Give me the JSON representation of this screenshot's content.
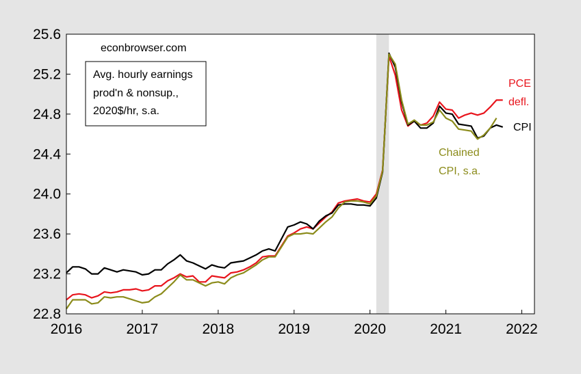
{
  "chart_data": {
    "type": "line",
    "title": "",
    "xlabel": "",
    "ylabel": "",
    "xlim": [
      2016.0,
      2022.167
    ],
    "ylim": [
      22.8,
      25.6
    ],
    "x_ticks": [
      "2016",
      "2017",
      "2018",
      "2019",
      "2020",
      "2021",
      "2022"
    ],
    "y_ticks": [
      "22.8",
      "23.2",
      "23.6",
      "24.0",
      "24.4",
      "24.8",
      "25.2",
      "25.6"
    ],
    "grid": false,
    "recession_shading": [
      2020.083,
      2020.25
    ],
    "source_label": "econbrowser.com",
    "legend_box": [
      "Avg. hourly earnings",
      "prod'n & nonsup.,",
      "2020$/hr, s.a."
    ],
    "series_labels": {
      "pce": [
        "PCE",
        "defl."
      ],
      "cpi": [
        "CPI"
      ],
      "chained": [
        "Chained",
        "CPI, s.a."
      ]
    },
    "series": [
      {
        "id": "pce",
        "color": "#e8141c",
        "start": 2016.0,
        "values": [
          22.94,
          22.99,
          23.0,
          22.99,
          22.96,
          22.98,
          23.02,
          23.01,
          23.02,
          23.04,
          23.04,
          23.05,
          23.03,
          23.04,
          23.08,
          23.08,
          23.13,
          23.16,
          23.2,
          23.17,
          23.18,
          23.12,
          23.12,
          23.18,
          23.17,
          23.16,
          23.21,
          23.22,
          23.24,
          23.27,
          23.31,
          23.37,
          23.38,
          23.38,
          23.48,
          23.58,
          23.61,
          23.65,
          23.67,
          23.65,
          23.71,
          23.77,
          23.82,
          23.91,
          23.93,
          23.94,
          23.95,
          23.93,
          23.92,
          24.0,
          24.24,
          25.38,
          25.19,
          24.84,
          24.68,
          24.73,
          24.69,
          24.71,
          24.78,
          24.92,
          24.85,
          24.84,
          24.76,
          24.79,
          24.81,
          24.79,
          24.81,
          24.87,
          24.94,
          24.94
        ]
      },
      {
        "id": "cpi",
        "color": "#000000",
        "start": 2016.0,
        "values": [
          23.21,
          23.27,
          23.27,
          23.25,
          23.2,
          23.2,
          23.26,
          23.24,
          23.22,
          23.24,
          23.23,
          23.22,
          23.19,
          23.2,
          23.24,
          23.24,
          23.3,
          23.34,
          23.39,
          23.33,
          23.31,
          23.28,
          23.25,
          23.29,
          23.27,
          23.26,
          23.31,
          23.32,
          23.33,
          23.36,
          23.39,
          23.43,
          23.45,
          23.43,
          23.55,
          23.67,
          23.69,
          23.72,
          23.7,
          23.65,
          23.73,
          23.78,
          23.81,
          23.89,
          23.9,
          23.9,
          23.89,
          23.89,
          23.88,
          23.96,
          24.22,
          25.41,
          25.27,
          24.92,
          24.69,
          24.73,
          24.66,
          24.66,
          24.71,
          24.88,
          24.81,
          24.8,
          24.7,
          24.69,
          24.68,
          24.56,
          24.58,
          24.66,
          24.69,
          24.67
        ]
      },
      {
        "id": "chained",
        "color": "#8b8b1a",
        "start": 2016.0,
        "values": [
          22.85,
          22.94,
          22.94,
          22.94,
          22.9,
          22.91,
          22.97,
          22.96,
          22.97,
          22.97,
          22.95,
          22.93,
          22.91,
          22.92,
          22.97,
          23.0,
          23.06,
          23.12,
          23.19,
          23.14,
          23.14,
          23.11,
          23.08,
          23.11,
          23.12,
          23.1,
          23.16,
          23.19,
          23.21,
          23.25,
          23.29,
          23.34,
          23.37,
          23.37,
          23.47,
          23.57,
          23.6,
          23.6,
          23.61,
          23.6,
          23.66,
          23.72,
          23.77,
          23.86,
          23.92,
          23.93,
          23.93,
          23.92,
          23.9,
          23.98,
          24.23,
          25.4,
          25.3,
          24.94,
          24.7,
          24.74,
          24.69,
          24.69,
          24.72,
          24.84,
          24.76,
          24.73,
          24.65,
          24.64,
          24.63,
          24.55,
          24.59,
          24.66,
          24.76
        ]
      }
    ]
  }
}
